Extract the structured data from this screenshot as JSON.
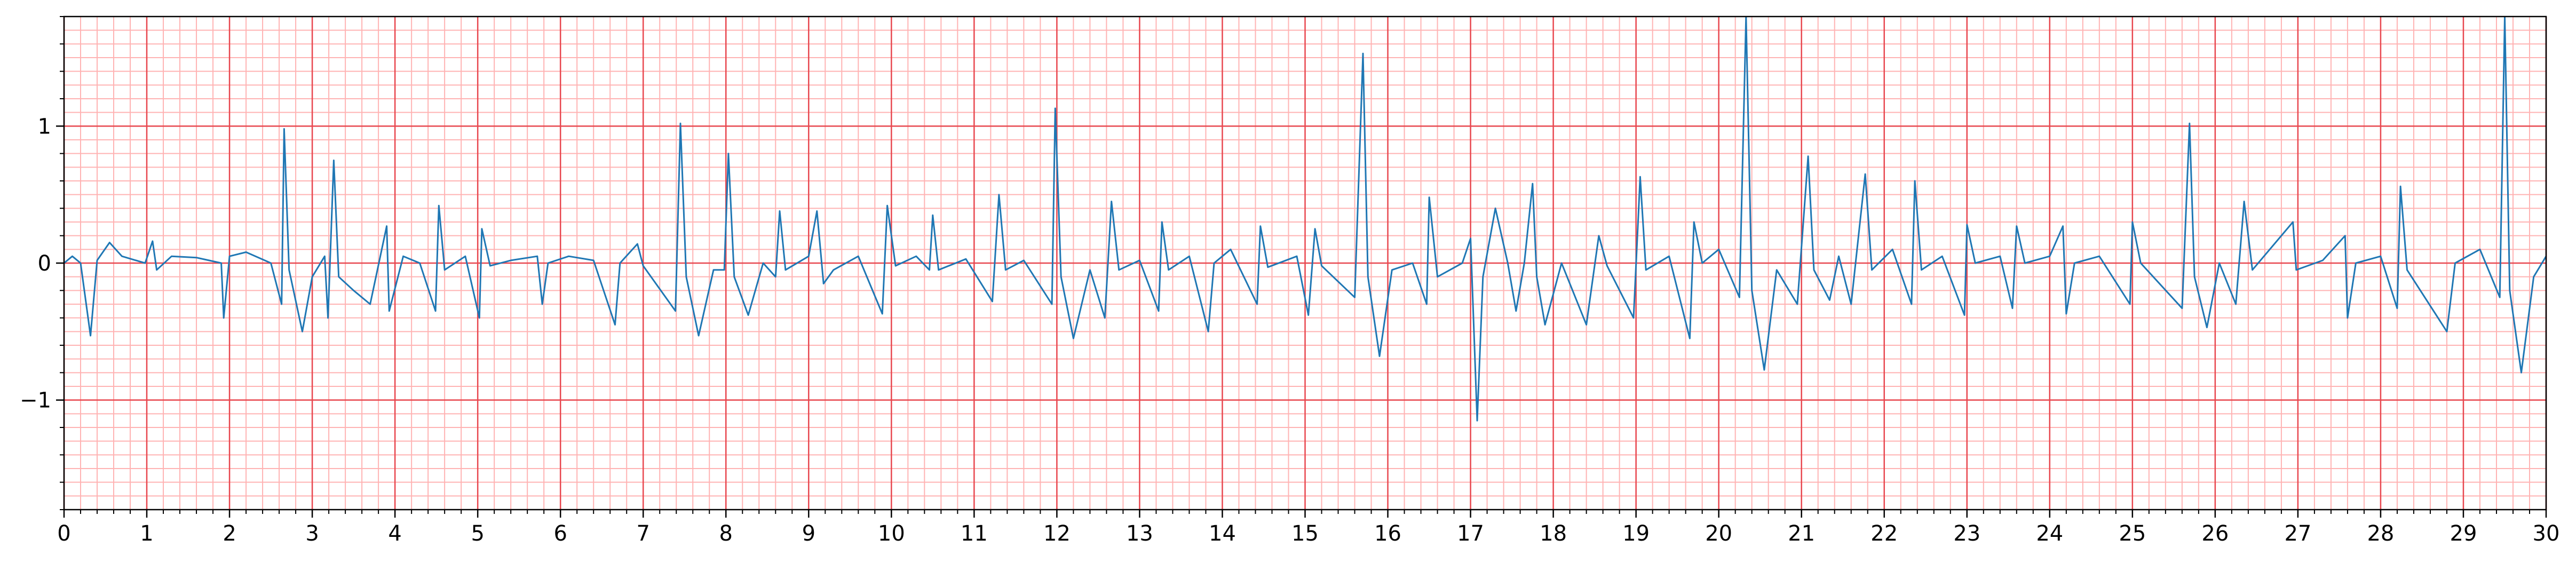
{
  "chart_data": {
    "type": "line",
    "series": [
      {
        "color": "#1f77b4",
        "x": [
          0,
          0.1,
          0.2,
          0.32,
          0.4,
          0.55,
          0.7,
          0.98,
          1.07,
          1.12,
          1.3,
          1.6,
          1.9,
          1.93,
          2.0,
          2.2,
          2.5,
          2.63,
          2.66,
          2.72,
          2.88,
          3.0,
          3.15,
          3.19,
          3.26,
          3.32,
          3.5,
          3.7,
          3.9,
          3.93,
          4.1,
          4.3,
          4.49,
          4.53,
          4.6,
          4.85,
          5.02,
          5.05,
          5.15,
          5.4,
          5.72,
          5.78,
          5.85,
          6.1,
          6.4,
          6.66,
          6.72,
          6.93,
          7.0,
          7.39,
          7.45,
          7.52,
          7.67,
          7.85,
          7.98,
          8.03,
          8.1,
          8.27,
          8.45,
          8.6,
          8.65,
          8.72,
          9.0,
          9.1,
          9.18,
          9.3,
          9.6,
          9.89,
          9.95,
          10.05,
          10.3,
          10.46,
          10.5,
          10.57,
          10.9,
          11.22,
          11.3,
          11.38,
          11.6,
          11.94,
          11.98,
          12.05,
          12.2,
          12.4,
          12.58,
          12.66,
          12.75,
          13.0,
          13.23,
          13.27,
          13.35,
          13.6,
          13.83,
          13.9,
          14.1,
          14.42,
          14.46,
          14.55,
          14.9,
          15.04,
          15.12,
          15.2,
          15.6,
          15.7,
          15.76,
          15.9,
          16.05,
          16.3,
          16.47,
          16.5,
          16.6,
          16.9,
          17.0,
          17.08,
          17.15,
          17.3,
          17.45,
          17.55,
          17.65,
          17.75,
          17.8,
          17.9,
          18.1,
          18.4,
          18.55,
          18.65,
          18.97,
          19.05,
          19.12,
          19.4,
          19.65,
          19.7,
          19.8,
          20.0,
          20.25,
          20.33,
          20.4,
          20.55,
          20.7,
          20.95,
          21.08,
          21.15,
          21.34,
          21.45,
          21.6,
          21.77,
          21.85,
          22.1,
          22.33,
          22.37,
          22.45,
          22.7,
          22.97,
          23.0,
          23.1,
          23.4,
          23.55,
          23.6,
          23.7,
          24.0,
          24.16,
          24.2,
          24.3,
          24.6,
          24.97,
          25.0,
          25.1,
          25.6,
          25.69,
          25.75,
          25.9,
          26.05,
          26.25,
          26.35,
          26.45,
          26.94,
          26.98,
          27.3,
          27.57,
          27.6,
          27.7,
          28.0,
          28.2,
          28.24,
          28.32,
          28.8,
          28.9,
          29.2,
          29.44,
          29.5,
          29.56,
          29.7,
          29.85,
          30.0
        ],
        "values": [
          0,
          0.05,
          0.0,
          -0.53,
          0.02,
          0.15,
          0.05,
          0.0,
          0.16,
          -0.05,
          0.05,
          0.04,
          0.0,
          -0.4,
          0.05,
          0.08,
          0.0,
          -0.3,
          0.98,
          -0.05,
          -0.5,
          -0.1,
          0.05,
          -0.4,
          0.75,
          -0.1,
          -0.2,
          -0.3,
          0.27,
          -0.35,
          0.05,
          0.0,
          -0.35,
          0.42,
          -0.05,
          0.05,
          -0.4,
          0.25,
          -0.02,
          0.02,
          0.05,
          -0.3,
          0.0,
          0.05,
          0.02,
          -0.45,
          0.0,
          0.14,
          -0.02,
          -0.35,
          1.02,
          -0.1,
          -0.53,
          -0.05,
          -0.05,
          0.8,
          -0.1,
          -0.38,
          0.0,
          -0.1,
          0.38,
          -0.05,
          0.05,
          0.38,
          -0.15,
          -0.05,
          0.05,
          -0.37,
          0.42,
          -0.02,
          0.05,
          -0.05,
          0.35,
          -0.05,
          0.03,
          -0.28,
          0.5,
          -0.05,
          0.02,
          -0.3,
          1.13,
          -0.1,
          -0.55,
          -0.05,
          -0.4,
          0.45,
          -0.05,
          0.02,
          -0.35,
          0.3,
          -0.05,
          0.05,
          -0.5,
          0.0,
          0.1,
          -0.3,
          0.27,
          -0.03,
          0.05,
          -0.38,
          0.25,
          -0.02,
          -0.25,
          1.53,
          -0.1,
          -0.68,
          -0.05,
          0.0,
          -0.3,
          0.48,
          -0.1,
          0.0,
          0.18,
          -1.15,
          -0.1,
          0.4,
          0.0,
          -0.35,
          0.0,
          0.58,
          -0.1,
          -0.45,
          0.0,
          -0.45,
          0.2,
          -0.02,
          -0.4,
          0.63,
          -0.05,
          0.05,
          -0.55,
          0.3,
          0.0,
          0.1,
          -0.25,
          1.8,
          -0.2,
          -0.78,
          -0.05,
          -0.3,
          0.78,
          -0.05,
          -0.27,
          0.05,
          -0.3,
          0.65,
          -0.05,
          0.1,
          -0.3,
          0.6,
          -0.05,
          0.05,
          -0.38,
          0.28,
          0.0,
          0.05,
          -0.33,
          0.27,
          0.0,
          0.05,
          0.27,
          -0.37,
          0.0,
          0.05,
          -0.3,
          0.3,
          0.0,
          -0.33,
          1.02,
          -0.1,
          -0.47,
          0.0,
          -0.3,
          0.45,
          -0.05,
          0.3,
          -0.05,
          0.02,
          0.2,
          -0.4,
          0.0,
          0.05,
          -0.33,
          0.56,
          -0.05,
          -0.5,
          0.0,
          0.1,
          -0.25,
          1.8,
          -0.2,
          -0.8,
          -0.1,
          0.05
        ]
      }
    ],
    "xlim": [
      0,
      30
    ],
    "ylim": [
      -1.8,
      1.8
    ],
    "xticks": [
      0,
      1,
      2,
      3,
      4,
      5,
      6,
      7,
      8,
      9,
      10,
      11,
      12,
      13,
      14,
      15,
      16,
      17,
      18,
      19,
      20,
      21,
      22,
      23,
      24,
      25,
      26,
      27,
      28,
      29,
      30
    ],
    "yticks": [
      {
        "value": -1,
        "label": "−1"
      },
      0,
      1
    ],
    "xminor_step": 0.2,
    "yminor_step": 0.1,
    "grid": true,
    "major_grid_color": "#e8474f",
    "minor_grid_color": "#ffb3b3"
  }
}
